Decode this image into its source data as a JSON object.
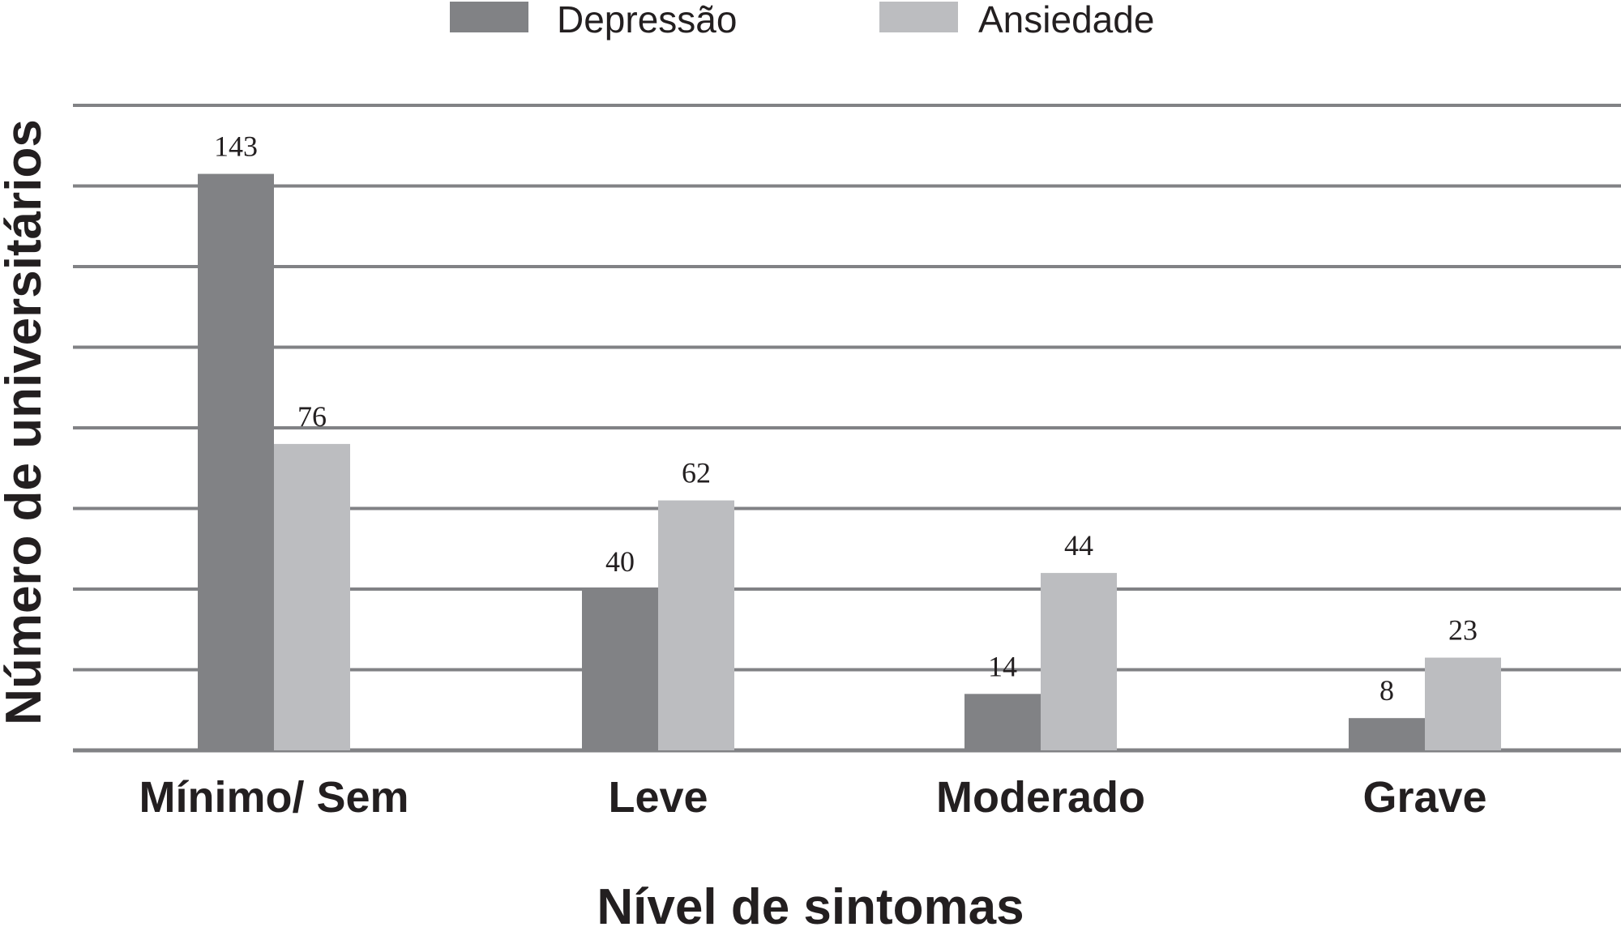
{
  "chart_data": {
    "type": "bar",
    "categories": [
      "Mínimo/ Sem",
      "Leve",
      "Moderado",
      "Grave"
    ],
    "series": [
      {
        "name": "Depressão",
        "values": [
          143,
          40,
          14,
          8
        ],
        "color": "#818285"
      },
      {
        "name": "Ansiedade",
        "values": [
          76,
          62,
          44,
          23
        ],
        "color": "#bcbdc0"
      }
    ],
    "xlabel": "Nível de sintomas",
    "ylabel": "Número de universitários",
    "ylim": [
      0,
      160
    ],
    "y_gridline_step": 20,
    "grid": true,
    "legend_position": "top-center",
    "data_labels": true
  }
}
